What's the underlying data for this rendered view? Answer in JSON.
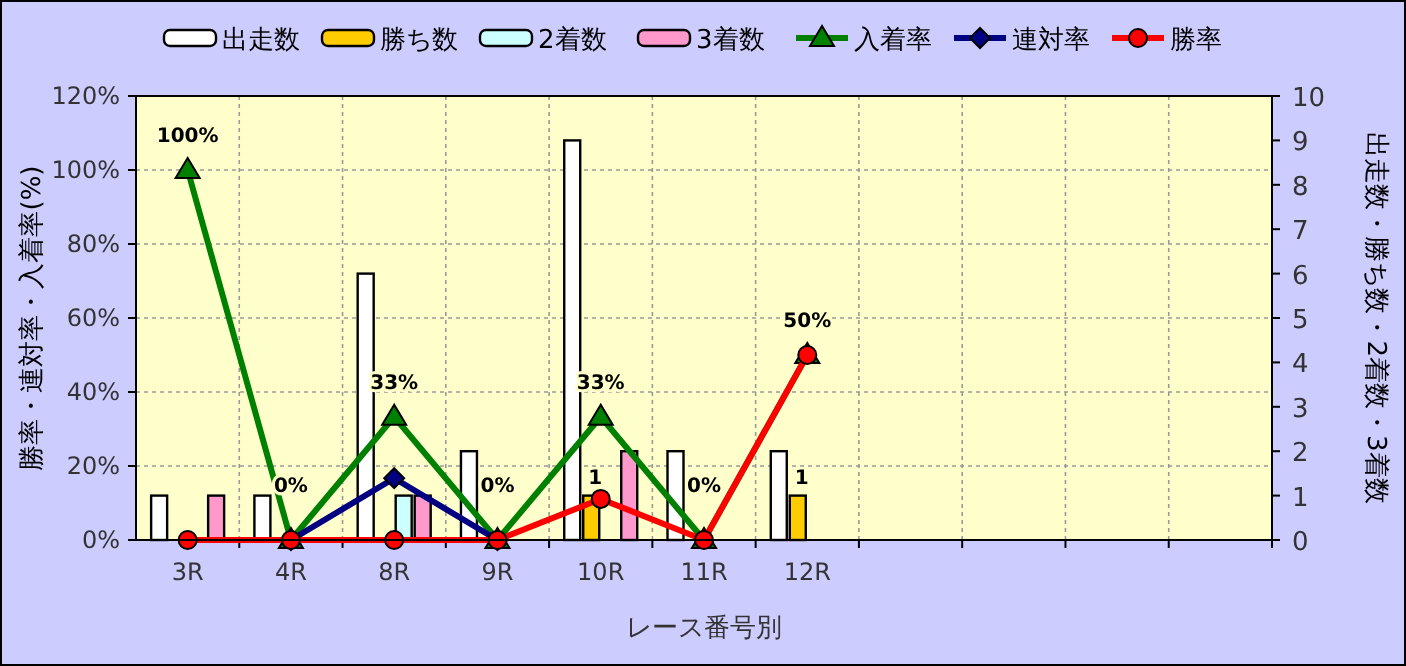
{
  "chart_data": {
    "type": "bar",
    "xlabel": "レース番号別",
    "ylabel": "勝率・連対率・入着率(%)",
    "y2label": "出走数・勝ち数・2着数・3着数",
    "categories": [
      "3R",
      "4R",
      "8R",
      "9R",
      "10R",
      "11R",
      "12R",
      null,
      null,
      null,
      null
    ],
    "series": [
      {
        "name": "出走数",
        "type": "bar",
        "axis": "y2",
        "color": "#ffffff",
        "values": [
          1,
          1,
          6,
          2,
          9,
          2,
          2,
          null,
          null,
          null,
          null
        ]
      },
      {
        "name": "勝ち数",
        "type": "bar",
        "axis": "y2",
        "color": "#ffcc00",
        "values": [
          0,
          0,
          0,
          0,
          1,
          0,
          1,
          null,
          null,
          null,
          null
        ],
        "value_labels": [
          null,
          null,
          null,
          null,
          "1",
          null,
          "1",
          null,
          null,
          null,
          null
        ]
      },
      {
        "name": "2着数",
        "type": "bar",
        "axis": "y2",
        "color": "#ccffff",
        "values": [
          0,
          0,
          1,
          0,
          0,
          0,
          0,
          null,
          null,
          null,
          null
        ]
      },
      {
        "name": "3着数",
        "type": "bar",
        "axis": "y2",
        "color": "#ff99cc",
        "values": [
          1,
          0,
          1,
          0,
          2,
          0,
          0,
          null,
          null,
          null,
          null
        ]
      },
      {
        "name": "入着率",
        "type": "line",
        "color": "#008000",
        "marker": "triangle",
        "values": [
          100,
          0,
          33.3,
          0,
          33.3,
          0,
          50,
          null,
          null,
          null,
          null
        ],
        "value_labels": [
          "100%",
          "0%",
          "33%",
          "0%",
          "33%",
          "0%",
          "50%",
          null,
          null,
          null,
          null
        ]
      },
      {
        "name": "連対率",
        "type": "line",
        "color": "#000080",
        "marker": "diamond",
        "values": [
          null,
          0,
          16.7,
          0,
          null,
          null,
          null,
          null,
          null,
          null,
          null
        ]
      },
      {
        "name": "勝率",
        "type": "line",
        "color": "#ff0000",
        "marker": "circle",
        "values": [
          0,
          0,
          0,
          0,
          11.1,
          0,
          50,
          null,
          null,
          null,
          null
        ]
      }
    ],
    "ylim": [
      0,
      120
    ],
    "yticks": [
      {
        "value": 0,
        "label": "0%"
      },
      {
        "value": 20,
        "label": "20%"
      },
      {
        "value": 40,
        "label": "40%"
      },
      {
        "value": 60,
        "label": "60%"
      },
      {
        "value": 80,
        "label": "80%"
      },
      {
        "value": 100,
        "label": "100%"
      },
      {
        "value": 120,
        "label": "120%"
      }
    ],
    "y2lim": [
      0,
      10
    ],
    "y2ticks": [
      0,
      1,
      2,
      3,
      4,
      5,
      6,
      7,
      8,
      9,
      10
    ],
    "grid": true,
    "legend": "top"
  }
}
